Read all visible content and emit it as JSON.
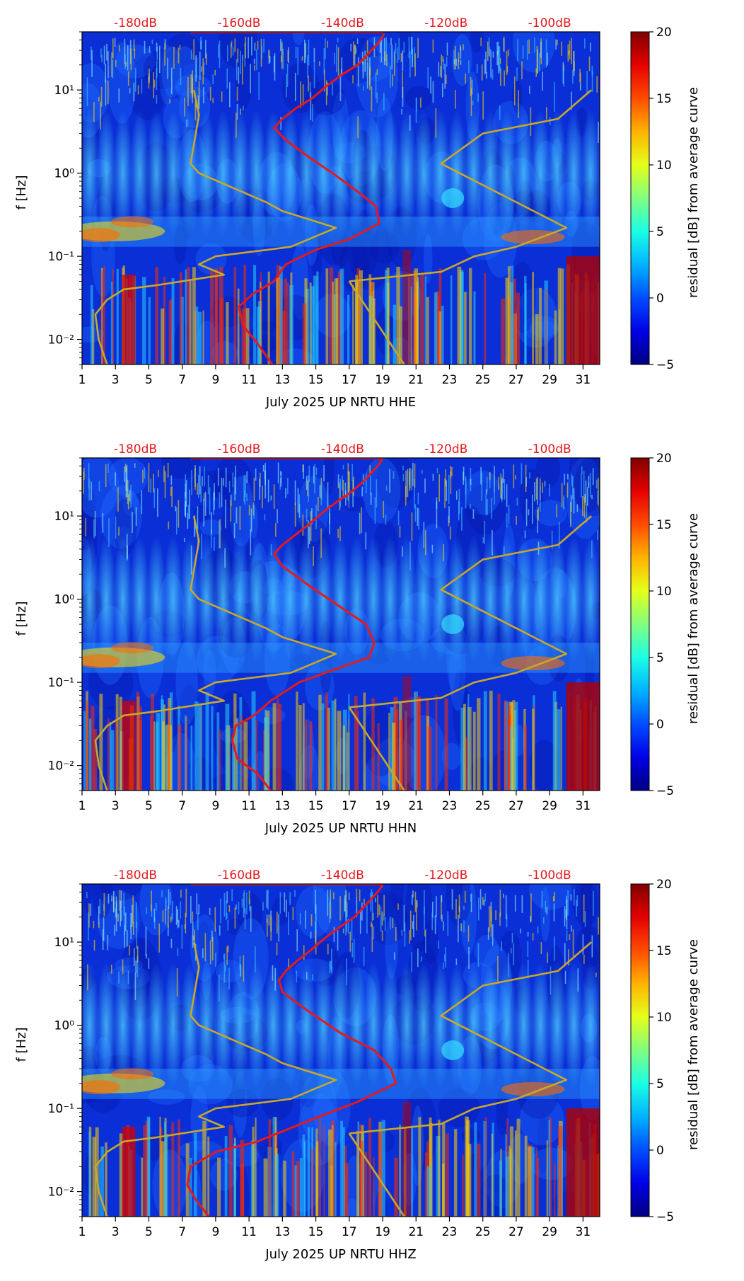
{
  "chart_data": [
    {
      "type": "heatmap",
      "title": "",
      "xlabel": "July 2025 UP NRTU  HHE",
      "ylabel": "f [Hz]",
      "xlim": [
        1,
        32
      ],
      "ylim": [
        0.005,
        50
      ],
      "y_scale": "log",
      "x_ticks": [
        "1",
        "3",
        "5",
        "7",
        "9",
        "11",
        "13",
        "15",
        "17",
        "19",
        "21",
        "23",
        "25",
        "27",
        "29",
        "31"
      ],
      "y_ticks": [
        {
          "value": 0.01,
          "label": "10⁻²"
        },
        {
          "value": 0.1,
          "label": "10⁻¹"
        },
        {
          "value": 1,
          "label": "10⁰"
        },
        {
          "value": 10,
          "label": "10¹"
        }
      ],
      "top_labels": [
        "-180dB",
        "-160dB",
        "-140dB",
        "-120dB",
        "-100dB"
      ],
      "colorbar": {
        "label": "residual [dB] from average curve",
        "min": -5,
        "max": 20,
        "ticks": [
          "-5",
          "0",
          "5",
          "10",
          "15",
          "20"
        ]
      },
      "series": [
        {
          "color": "#e41a1c",
          "points": [
            [
              12.4,
              0.005
            ],
            [
              11.5,
              0.009
            ],
            [
              10.6,
              0.015
            ],
            [
              10.4,
              0.025
            ],
            [
              11.2,
              0.035
            ],
            [
              12.5,
              0.05
            ],
            [
              13.2,
              0.08
            ],
            [
              15.0,
              0.12
            ],
            [
              17.0,
              0.16
            ],
            [
              18.8,
              0.25
            ],
            [
              18.6,
              0.4
            ],
            [
              17.5,
              0.6
            ],
            [
              16.0,
              1.0
            ],
            [
              14.5,
              1.6
            ],
            [
              13.2,
              2.5
            ],
            [
              12.5,
              3.5
            ],
            [
              13.0,
              4.5
            ],
            [
              13.8,
              6.0
            ],
            [
              14.8,
              8.0
            ],
            [
              15.6,
              11.0
            ],
            [
              16.5,
              15.0
            ],
            [
              17.5,
              20.0
            ],
            [
              18.2,
              28.0
            ],
            [
              18.8,
              38.0
            ],
            [
              19.1,
              48.0
            ]
          ]
        },
        {
          "color": "#c8a72a",
          "points": [
            [
              2.5,
              0.005
            ],
            [
              2.0,
              0.01
            ],
            [
              1.8,
              0.02
            ],
            [
              2.5,
              0.03
            ],
            [
              3.5,
              0.04
            ],
            [
              5.5,
              0.045
            ],
            [
              9.5,
              0.06
            ],
            [
              8.0,
              0.08
            ],
            [
              9.0,
              0.1
            ],
            [
              13.5,
              0.13
            ],
            [
              16.2,
              0.22
            ],
            [
              13.0,
              0.35
            ],
            [
              12.0,
              0.45
            ],
            [
              8.0,
              1.0
            ],
            [
              7.5,
              1.3
            ],
            [
              8.0,
              5.0
            ],
            [
              7.7,
              10.0
            ]
          ]
        },
        {
          "color": "#c8a72a",
          "points": [
            [
              17.0,
              0.05
            ],
            [
              20.3,
              0.005
            ]
          ]
        },
        {
          "color": "#c8a72a",
          "points": [
            [
              17.0,
              0.05
            ],
            [
              22.5,
              0.065
            ],
            [
              24.5,
              0.1
            ],
            [
              27.0,
              0.13
            ],
            [
              30.0,
              0.22
            ],
            [
              22.5,
              1.3
            ],
            [
              25.0,
              3.0
            ],
            [
              29.5,
              4.5
            ],
            [
              31.5,
              10.0
            ]
          ]
        }
      ]
    },
    {
      "type": "heatmap",
      "title": "",
      "xlabel": "July 2025 UP NRTU  HHN",
      "ylabel": "f [Hz]",
      "xlim": [
        1,
        32
      ],
      "ylim": [
        0.005,
        50
      ],
      "y_scale": "log",
      "x_ticks": [
        "1",
        "3",
        "5",
        "7",
        "9",
        "11",
        "13",
        "15",
        "17",
        "19",
        "21",
        "23",
        "25",
        "27",
        "29",
        "31"
      ],
      "y_ticks": [
        {
          "value": 0.01,
          "label": "10⁻²"
        },
        {
          "value": 0.1,
          "label": "10⁻¹"
        },
        {
          "value": 1,
          "label": "10⁰"
        },
        {
          "value": 10,
          "label": "10¹"
        }
      ],
      "top_labels": [
        "-180dB",
        "-160dB",
        "-140dB",
        "-120dB",
        "-100dB"
      ],
      "colorbar": {
        "label": "residual [dB] from average curve",
        "min": -5,
        "max": 20,
        "ticks": [
          "-5",
          "0",
          "5",
          "10",
          "15",
          "20"
        ]
      },
      "series": [
        {
          "color": "#e41a1c",
          "points": [
            [
              12.3,
              0.005
            ],
            [
              11.5,
              0.008
            ],
            [
              10.3,
              0.012
            ],
            [
              10.0,
              0.02
            ],
            [
              10.2,
              0.03
            ],
            [
              11.3,
              0.04
            ],
            [
              12.3,
              0.06
            ],
            [
              14.0,
              0.1
            ],
            [
              16.0,
              0.14
            ],
            [
              18.2,
              0.2
            ],
            [
              18.5,
              0.3
            ],
            [
              18.0,
              0.5
            ],
            [
              16.5,
              0.8
            ],
            [
              14.5,
              1.5
            ],
            [
              13.0,
              2.5
            ],
            [
              12.5,
              3.5
            ],
            [
              13.0,
              4.5
            ],
            [
              13.8,
              6.0
            ],
            [
              14.6,
              8.0
            ],
            [
              15.4,
              11.0
            ],
            [
              16.3,
              15.0
            ],
            [
              17.2,
              20.0
            ],
            [
              18.0,
              28.0
            ],
            [
              18.6,
              38.0
            ],
            [
              19.0,
              48.0
            ]
          ]
        },
        {
          "color": "#c8a72a",
          "points": [
            [
              2.5,
              0.005
            ],
            [
              2.0,
              0.01
            ],
            [
              1.8,
              0.02
            ],
            [
              2.5,
              0.03
            ],
            [
              3.5,
              0.04
            ],
            [
              5.5,
              0.045
            ],
            [
              9.5,
              0.06
            ],
            [
              8.0,
              0.08
            ],
            [
              9.0,
              0.1
            ],
            [
              13.5,
              0.13
            ],
            [
              16.2,
              0.22
            ],
            [
              13.0,
              0.35
            ],
            [
              12.0,
              0.45
            ],
            [
              8.0,
              1.0
            ],
            [
              7.5,
              1.3
            ],
            [
              8.0,
              5.0
            ],
            [
              7.7,
              10.0
            ]
          ]
        },
        {
          "color": "#c8a72a",
          "points": [
            [
              17.0,
              0.05
            ],
            [
              20.3,
              0.005
            ]
          ]
        },
        {
          "color": "#c8a72a",
          "points": [
            [
              17.0,
              0.05
            ],
            [
              22.5,
              0.065
            ],
            [
              24.5,
              0.1
            ],
            [
              27.0,
              0.13
            ],
            [
              30.0,
              0.22
            ],
            [
              22.5,
              1.3
            ],
            [
              25.0,
              3.0
            ],
            [
              29.5,
              4.5
            ],
            [
              31.5,
              10.0
            ]
          ]
        }
      ]
    },
    {
      "type": "heatmap",
      "title": "",
      "xlabel": "July 2025 UP NRTU  HHZ",
      "ylabel": "f [Hz]",
      "xlim": [
        1,
        32
      ],
      "ylim": [
        0.005,
        50
      ],
      "y_scale": "log",
      "x_ticks": [
        "1",
        "3",
        "5",
        "7",
        "9",
        "11",
        "13",
        "15",
        "17",
        "19",
        "21",
        "23",
        "25",
        "27",
        "29",
        "31"
      ],
      "y_ticks": [
        {
          "value": 0.01,
          "label": "10⁻²"
        },
        {
          "value": 0.1,
          "label": "10⁻¹"
        },
        {
          "value": 1,
          "label": "10⁰"
        },
        {
          "value": 10,
          "label": "10¹"
        }
      ],
      "top_labels": [
        "-180dB",
        "-160dB",
        "-140dB",
        "-120dB",
        "-100dB"
      ],
      "colorbar": {
        "label": "residual [dB] from average curve",
        "min": -5,
        "max": 20,
        "ticks": [
          "-5",
          "0",
          "5",
          "10",
          "15",
          "20"
        ]
      },
      "series": [
        {
          "color": "#e41a1c",
          "points": [
            [
              8.6,
              0.005
            ],
            [
              7.8,
              0.008
            ],
            [
              7.3,
              0.012
            ],
            [
              7.5,
              0.02
            ],
            [
              9.0,
              0.03
            ],
            [
              11.5,
              0.04
            ],
            [
              14.5,
              0.07
            ],
            [
              17.5,
              0.12
            ],
            [
              19.8,
              0.2
            ],
            [
              19.5,
              0.3
            ],
            [
              18.5,
              0.5
            ],
            [
              16.5,
              0.8
            ],
            [
              14.5,
              1.5
            ],
            [
              13.0,
              2.5
            ],
            [
              12.8,
              3.5
            ],
            [
              13.2,
              4.5
            ],
            [
              13.9,
              6.0
            ],
            [
              14.7,
              8.0
            ],
            [
              15.5,
              11.0
            ],
            [
              16.4,
              15.0
            ],
            [
              17.3,
              20.0
            ],
            [
              18.0,
              28.0
            ],
            [
              18.6,
              38.0
            ],
            [
              19.0,
              48.0
            ]
          ]
        },
        {
          "color": "#c8a72a",
          "points": [
            [
              2.5,
              0.005
            ],
            [
              2.0,
              0.01
            ],
            [
              1.8,
              0.02
            ],
            [
              2.5,
              0.03
            ],
            [
              3.5,
              0.04
            ],
            [
              5.5,
              0.045
            ],
            [
              9.5,
              0.06
            ],
            [
              8.0,
              0.08
            ],
            [
              9.0,
              0.1
            ],
            [
              13.5,
              0.13
            ],
            [
              16.2,
              0.22
            ],
            [
              13.0,
              0.35
            ],
            [
              12.0,
              0.45
            ],
            [
              8.0,
              1.0
            ],
            [
              7.5,
              1.3
            ],
            [
              8.0,
              5.0
            ],
            [
              7.7,
              10.0
            ]
          ]
        },
        {
          "color": "#c8a72a",
          "points": [
            [
              17.0,
              0.05
            ],
            [
              20.3,
              0.005
            ]
          ]
        },
        {
          "color": "#c8a72a",
          "points": [
            [
              17.0,
              0.05
            ],
            [
              22.5,
              0.065
            ],
            [
              24.5,
              0.1
            ],
            [
              27.0,
              0.13
            ],
            [
              30.0,
              0.22
            ],
            [
              22.5,
              1.3
            ],
            [
              25.0,
              3.0
            ],
            [
              29.5,
              4.5
            ],
            [
              31.5,
              10.0
            ]
          ]
        }
      ]
    }
  ]
}
